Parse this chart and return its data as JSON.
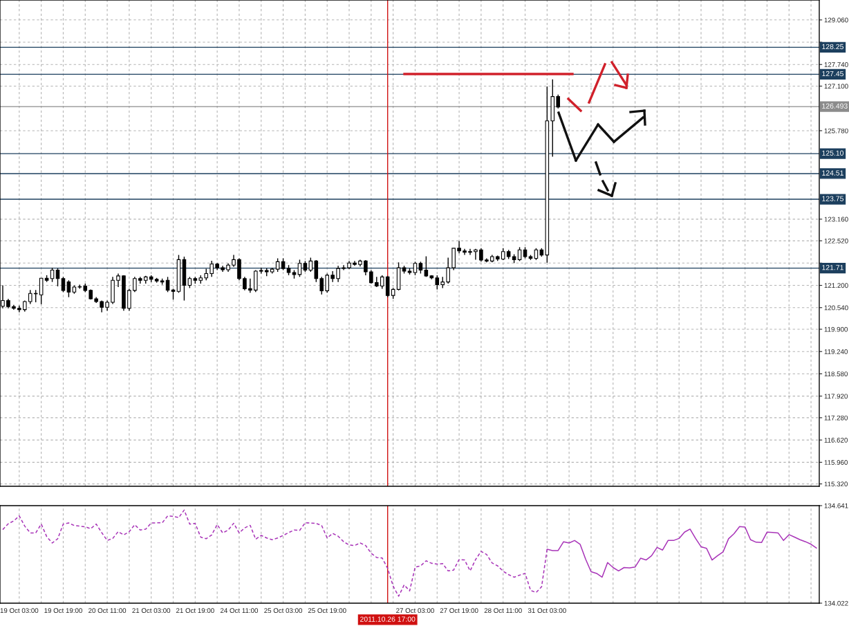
{
  "chart_data": [
    {
      "type": "candlestick",
      "categories": [
        null,
        null,
        null,
        "19 Oct 03:00",
        null,
        null,
        null,
        null,
        null,
        null,
        null,
        "19 Oct 19:00",
        null,
        null,
        null,
        null,
        null,
        null,
        null,
        "20 Oct 11:00",
        null,
        null,
        null,
        null,
        null,
        null,
        null,
        "21 Oct 03:00",
        null,
        null,
        null,
        null,
        null,
        null,
        null,
        "21 Oct 19:00",
        null,
        null,
        null,
        null,
        null,
        null,
        null,
        "24 Oct 11:00",
        null,
        null,
        null,
        null,
        null,
        null,
        null,
        "25 Oct 03:00",
        null,
        null,
        null,
        null,
        null,
        null,
        null,
        "25 Oct 19:00",
        null,
        null,
        null,
        null,
        null,
        null,
        null,
        null,
        null,
        null,
        "2011.10.26 17:00",
        null,
        null,
        null,
        null,
        "27 Oct 03:00",
        null,
        null,
        null,
        null,
        null,
        null,
        null,
        "27 Oct 19:00",
        null,
        null,
        null,
        null,
        null,
        null,
        null,
        "28 Oct 11:00",
        null,
        null,
        null,
        null,
        null,
        null,
        null,
        "31 Oct 03:00",
        null,
        null,
        null,
        null,
        null,
        null,
        null,
        null,
        null,
        null,
        null,
        null,
        null,
        null,
        null,
        null,
        null,
        null,
        null,
        null,
        null,
        null,
        null,
        null,
        null,
        null,
        null,
        null,
        null,
        null,
        null,
        null,
        null,
        null,
        null,
        null,
        null,
        null,
        null,
        null,
        null,
        null,
        null,
        null,
        null,
        null,
        null,
        null,
        null
      ],
      "ohlc": [
        [
          120.58,
          121.2,
          120.52,
          120.75
        ],
        [
          120.75,
          120.8,
          120.52,
          120.57
        ],
        [
          120.57,
          120.62,
          120.48,
          120.52
        ],
        [
          120.52,
          120.6,
          120.4,
          120.48
        ],
        [
          120.48,
          120.75,
          120.42,
          120.72
        ],
        [
          120.72,
          121.06,
          120.65,
          120.96
        ],
        [
          120.96,
          121.06,
          120.7,
          120.95
        ],
        [
          120.92,
          121.41,
          120.64,
          121.41
        ],
        [
          121.41,
          121.5,
          121.3,
          121.35
        ],
        [
          121.4,
          121.72,
          121.3,
          121.65
        ],
        [
          121.65,
          121.7,
          121.17,
          121.4
        ],
        [
          121.4,
          121.45,
          121.0,
          121.05
        ],
        [
          121.3,
          121.35,
          120.85,
          121.0
        ],
        [
          121.0,
          121.2,
          120.95,
          121.15
        ],
        [
          121.15,
          121.22,
          121.1,
          121.16
        ],
        [
          121.18,
          121.25,
          121.0,
          121.05
        ],
        [
          121.05,
          121.08,
          120.78,
          120.8
        ],
        [
          120.8,
          120.85,
          120.68,
          120.72
        ],
        [
          120.72,
          120.75,
          120.4,
          120.55
        ],
        [
          120.55,
          120.75,
          120.45,
          120.7
        ],
        [
          120.7,
          121.45,
          120.65,
          121.35
        ],
        [
          121.35,
          121.55,
          121.15,
          121.48
        ],
        [
          121.48,
          121.5,
          120.45,
          120.52
        ],
        [
          120.52,
          121.1,
          120.45,
          121.05
        ],
        [
          121.05,
          121.45,
          121.0,
          121.4
        ],
        [
          121.4,
          121.45,
          121.25,
          121.35
        ],
        [
          121.35,
          121.48,
          121.25,
          121.45
        ],
        [
          121.45,
          121.5,
          121.3,
          121.38
        ],
        [
          121.38,
          121.42,
          121.28,
          121.33
        ],
        [
          121.33,
          121.4,
          121.22,
          121.3
        ],
        [
          121.35,
          121.45,
          121.0,
          121.06
        ],
        [
          121.06,
          121.1,
          120.78,
          121.02
        ],
        [
          121.02,
          122.1,
          120.98,
          121.96
        ],
        [
          121.96,
          122.05,
          120.75,
          121.2
        ],
        [
          121.2,
          121.45,
          121.12,
          121.4
        ],
        [
          121.4,
          121.45,
          121.25,
          121.35
        ],
        [
          121.35,
          121.5,
          121.25,
          121.42
        ],
        [
          121.42,
          121.69,
          121.35,
          121.55
        ],
        [
          121.55,
          121.93,
          121.45,
          121.83
        ],
        [
          121.83,
          121.86,
          121.65,
          121.72
        ],
        [
          121.72,
          121.78,
          121.6,
          121.66
        ],
        [
          121.66,
          121.85,
          121.6,
          121.8
        ],
        [
          121.8,
          122.1,
          121.75,
          121.96
        ],
        [
          121.96,
          122.0,
          121.35,
          121.4
        ],
        [
          121.4,
          121.45,
          121.05,
          121.1
        ],
        [
          121.1,
          121.4,
          120.98,
          121.06
        ],
        [
          121.06,
          121.65,
          121.0,
          121.62
        ],
        [
          121.62,
          121.72,
          121.55,
          121.64
        ],
        [
          121.64,
          121.7,
          121.47,
          121.6
        ],
        [
          121.6,
          121.72,
          121.55,
          121.68
        ],
        [
          121.68,
          122.0,
          121.6,
          121.9
        ],
        [
          121.9,
          122.0,
          121.65,
          121.7
        ],
        [
          121.7,
          121.8,
          121.5,
          121.58
        ],
        [
          121.58,
          121.65,
          121.4,
          121.52
        ],
        [
          121.52,
          121.96,
          121.45,
          121.85
        ],
        [
          121.85,
          121.92,
          121.6,
          121.65
        ],
        [
          121.65,
          122.02,
          121.6,
          121.92
        ],
        [
          121.92,
          121.95,
          121.3,
          121.4
        ],
        [
          121.4,
          121.45,
          120.93,
          121.04
        ],
        [
          121.04,
          121.55,
          120.98,
          121.5
        ],
        [
          121.5,
          121.62,
          121.3,
          121.4
        ],
        [
          121.4,
          121.78,
          121.3,
          121.7
        ],
        [
          121.7,
          121.8,
          121.65,
          121.72
        ],
        [
          121.72,
          121.92,
          121.68,
          121.86
        ],
        [
          121.86,
          121.92,
          121.78,
          121.82
        ],
        [
          121.82,
          121.96,
          121.76,
          121.92
        ],
        [
          121.92,
          121.95,
          121.5,
          121.6
        ],
        [
          121.6,
          121.65,
          121.25,
          121.28
        ],
        [
          121.28,
          121.45,
          121.15,
          121.18
        ],
        [
          121.18,
          121.5,
          121.1,
          121.45
        ],
        [
          121.45,
          121.48,
          120.85,
          120.9
        ],
        [
          120.9,
          121.12,
          120.8,
          121.08
        ],
        [
          121.08,
          121.88,
          121.05,
          121.72
        ],
        [
          121.72,
          121.78,
          121.55,
          121.62
        ],
        [
          121.62,
          121.7,
          121.52,
          121.58
        ],
        [
          121.58,
          121.9,
          121.5,
          121.85
        ],
        [
          121.85,
          121.9,
          121.55,
          121.65
        ],
        [
          121.65,
          122.06,
          121.45,
          121.48
        ],
        [
          121.48,
          121.5,
          121.38,
          121.42
        ],
        [
          121.42,
          121.5,
          121.08,
          121.22
        ],
        [
          121.22,
          121.45,
          121.12,
          121.3
        ],
        [
          121.3,
          122.02,
          121.25,
          121.72
        ],
        [
          121.72,
          122.3,
          121.65,
          122.3
        ],
        [
          122.3,
          122.51,
          122.15,
          122.22
        ],
        [
          122.22,
          122.28,
          122.1,
          122.18
        ],
        [
          122.18,
          122.28,
          122.1,
          122.2
        ],
        [
          122.2,
          122.28,
          121.96,
          122.25
        ],
        [
          122.25,
          122.3,
          121.9,
          121.95
        ],
        [
          121.95,
          122.0,
          121.88,
          121.92
        ],
        [
          121.92,
          122.1,
          121.88,
          122.05
        ],
        [
          122.05,
          122.08,
          121.92,
          121.98
        ],
        [
          121.98,
          122.3,
          121.95,
          122.2
        ],
        [
          122.2,
          122.25,
          121.98,
          122.05
        ],
        [
          122.05,
          122.12,
          121.86,
          121.96
        ],
        [
          121.96,
          122.33,
          121.92,
          122.25
        ],
        [
          122.25,
          122.33,
          122.0,
          122.05
        ],
        [
          122.05,
          122.1,
          121.95,
          122.0
        ],
        [
          122.0,
          122.3,
          121.95,
          122.25
        ],
        [
          122.25,
          122.3,
          122.05,
          122.1
        ],
        [
          122.1,
          127.09,
          121.87,
          126.07
        ],
        [
          126.07,
          127.3,
          125.01,
          126.79
        ],
        [
          126.79,
          126.85,
          126.44,
          126.48
        ],
        null,
        null,
        null,
        null,
        null,
        null,
        null,
        null,
        null,
        null,
        null,
        null,
        null,
        null,
        null,
        null,
        null,
        null,
        null,
        null,
        null,
        null,
        null,
        null,
        null,
        null,
        null,
        null,
        null,
        null,
        null,
        null,
        null,
        null,
        null,
        null,
        null,
        null,
        null,
        null,
        null,
        null,
        null,
        null,
        null,
        null,
        null
      ],
      "ylim": [
        115.25,
        129.65
      ],
      "yticks": [
        {
          "value": 129.06,
          "label": "129.060"
        },
        {
          "value": 128.4,
          "label": null
        },
        {
          "value": 127.74,
          "label": "127.740"
        },
        {
          "value": 127.1,
          "label": "127.100"
        },
        {
          "value": 125.78,
          "label": "125.780"
        },
        {
          "value": 123.16,
          "label": "123.160"
        },
        {
          "value": 122.52,
          "label": "122.520"
        },
        {
          "value": 121.86,
          "label": null
        },
        {
          "value": 121.2,
          "label": "121.200"
        },
        {
          "value": 120.54,
          "label": "120.540"
        },
        {
          "value": 119.9,
          "label": "119.900"
        },
        {
          "value": 119.24,
          "label": "119.240"
        },
        {
          "value": 118.58,
          "label": "118.580"
        },
        {
          "value": 117.92,
          "label": "117.920"
        },
        {
          "value": 117.28,
          "label": "117.280"
        },
        {
          "value": 116.62,
          "label": "116.620"
        },
        {
          "value": 115.96,
          "label": "115.960"
        },
        {
          "value": 115.32,
          "label": "115.320"
        }
      ],
      "tick_labels": "y",
      "grid": true,
      "ref_lines": [
        {
          "axis": "y",
          "value": 128.25,
          "label": "128.25",
          "color": "#1c3f5e"
        },
        {
          "axis": "y",
          "value": 127.45,
          "label": "127.45",
          "color": "#1c3f5e"
        },
        {
          "axis": "y",
          "value": 126.493,
          "label": "126.493",
          "color": "#8c8c8c"
        },
        {
          "axis": "y",
          "value": 125.1,
          "label": "125.10",
          "color": "#1c3f5e"
        },
        {
          "axis": "y",
          "value": 124.51,
          "label": "124.51",
          "color": "#1c3f5e"
        },
        {
          "axis": "y",
          "value": 123.75,
          "label": "123.75",
          "color": "#1c3f5e"
        },
        {
          "axis": "y",
          "value": 121.71,
          "label": "121.71",
          "color": "#1c3f5e"
        },
        {
          "axis": "x",
          "value": "2011.10.26 17:00",
          "color": "#d01010"
        }
      ]
    },
    {
      "type": "line",
      "categories": [
        null,
        null,
        null,
        "19 Oct 03:00",
        null,
        null,
        null,
        null,
        null,
        null,
        null,
        "19 Oct 19:00",
        null,
        null,
        null,
        null,
        null,
        null,
        null,
        "20 Oct 11:00",
        null,
        null,
        null,
        null,
        null,
        null,
        null,
        "21 Oct 03:00",
        null,
        null,
        null,
        null,
        null,
        null,
        null,
        "21 Oct 19:00",
        null,
        null,
        null,
        null,
        null,
        null,
        null,
        "24 Oct 11:00",
        null,
        null,
        null,
        null,
        null,
        null,
        null,
        "25 Oct 03:00",
        null,
        null,
        null,
        null,
        null,
        null,
        null,
        "25 Oct 19:00",
        null,
        null,
        null,
        null,
        null,
        null,
        null,
        null,
        null,
        null,
        "2011.10.26 17:00",
        null,
        null,
        null,
        null,
        "27 Oct 03:00",
        null,
        null,
        null,
        null,
        null,
        null,
        null,
        "27 Oct 19:00",
        null,
        null,
        null,
        null,
        null,
        null,
        null,
        "28 Oct 11:00",
        null,
        null,
        null,
        null,
        null,
        null,
        null,
        "31 Oct 03:00",
        null,
        null,
        null,
        null,
        null,
        null,
        null,
        null,
        null,
        null,
        null,
        null,
        null,
        null,
        null,
        null,
        null,
        null,
        null,
        null,
        null,
        null,
        null,
        null,
        null,
        null,
        null,
        null,
        null,
        null,
        null,
        null,
        null,
        null,
        null,
        null,
        null,
        null,
        null,
        null,
        null,
        null,
        null,
        null,
        null,
        null,
        null,
        null,
        null
      ],
      "series": [
        {
          "color": "#a834b8",
          "line_style": "dashed",
          "values": [
            134.489,
            134.526,
            134.544,
            134.576,
            134.511,
            134.468,
            134.468,
            134.524,
            134.444,
            134.404,
            134.431,
            134.524,
            134.531,
            134.515,
            134.511,
            134.507,
            134.495,
            134.524,
            134.47,
            134.42,
            134.433,
            134.476,
            134.455,
            134.476,
            134.52,
            134.486,
            134.492,
            134.531,
            134.532,
            134.532,
            134.576,
            134.573,
            134.565,
            134.613,
            134.524,
            134.528,
            134.441,
            134.431,
            134.455,
            134.521,
            134.468,
            134.486,
            134.529,
            134.468,
            134.5,
            134.516,
            134.428,
            134.452,
            134.436,
            134.425,
            134.436,
            134.452,
            134.47,
            134.486,
            134.484,
            134.532,
            134.531,
            134.528,
            134.515,
            134.436,
            134.465,
            134.447,
            134.412,
            134.391,
            134.388,
            134.404,
            134.388,
            134.339,
            134.312,
            134.309,
            134.243,
            134.13,
            134.066,
            134.138,
            134.1,
            134.251,
            134.259,
            134.291,
            134.275,
            134.27,
            134.273,
            134.227,
            134.232,
            134.299,
            134.296,
            134.227,
            134.299,
            134.351,
            134.331,
            134.277,
            134.259,
            134.225,
            134.203,
            134.187,
            134.2,
            134.211,
            134.103,
            134.09,
            134.126,
            134.364,
            null,
            null,
            null,
            null,
            null,
            null,
            null,
            null,
            null,
            null,
            null,
            null,
            null,
            null,
            null,
            null,
            null,
            null,
            null,
            null,
            null,
            null,
            null,
            null,
            null,
            null,
            null,
            null,
            null,
            null,
            null,
            null,
            null,
            null,
            null,
            null,
            null,
            null,
            null,
            null,
            null,
            null,
            null,
            null,
            null,
            null,
            null,
            null,
            null
          ]
        },
        {
          "color": "#a834b8",
          "line_style": "solid",
          "values": [
            null,
            null,
            null,
            null,
            null,
            null,
            null,
            null,
            null,
            null,
            null,
            null,
            null,
            null,
            null,
            null,
            null,
            null,
            null,
            null,
            null,
            null,
            null,
            null,
            null,
            null,
            null,
            null,
            null,
            null,
            null,
            null,
            null,
            null,
            null,
            null,
            null,
            null,
            null,
            null,
            null,
            null,
            null,
            null,
            null,
            null,
            null,
            null,
            null,
            null,
            null,
            null,
            null,
            null,
            null,
            null,
            null,
            null,
            null,
            null,
            null,
            null,
            null,
            null,
            null,
            null,
            null,
            null,
            null,
            null,
            null,
            null,
            null,
            null,
            null,
            null,
            null,
            null,
            null,
            null,
            null,
            null,
            null,
            null,
            null,
            null,
            null,
            null,
            null,
            null,
            null,
            null,
            null,
            null,
            null,
            null,
            null,
            null,
            null,
            134.364,
            134.356,
            134.356,
            134.412,
            134.404,
            134.42,
            134.396,
            134.302,
            134.222,
            134.211,
            134.187,
            134.28,
            134.248,
            134.227,
            134.248,
            134.246,
            134.251,
            134.307,
            134.296,
            134.323,
            134.376,
            134.359,
            134.42,
            134.42,
            134.433,
            134.473,
            134.492,
            134.433,
            134.38,
            134.37,
            134.296,
            134.323,
            134.347,
            134.431,
            134.463,
            134.508,
            134.505,
            134.425,
            134.409,
            134.407,
            134.473,
            134.471,
            134.468,
            134.42,
            134.457,
            134.441,
            134.425,
            134.412,
            134.396,
            134.372
          ]
        }
      ],
      "ylim": [
        134.022,
        134.641
      ],
      "yticks": [
        134.641,
        134.022
      ],
      "grid": "x",
      "ref_lines": [
        {
          "axis": "x",
          "value": "2011.10.26 17:00",
          "color": "#d01010"
        }
      ]
    }
  ]
}
